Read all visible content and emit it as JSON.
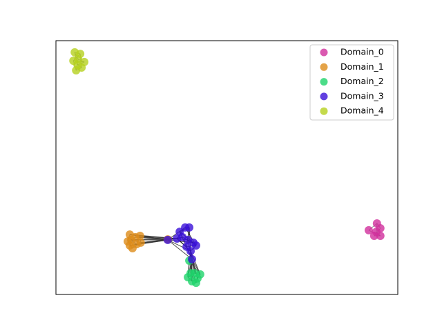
{
  "chart_data": {
    "type": "scatter",
    "xlim": [
      0,
      1
    ],
    "ylim": [
      0,
      1
    ],
    "legend": "upper right",
    "series": [
      {
        "name": "Domain_0",
        "color": "#d12f9c",
        "x": [
          0.915,
          0.939,
          0.949,
          0.931,
          0.949,
          0.937
        ],
        "values": [
          0.253,
          0.28,
          0.261,
          0.231,
          0.231,
          0.247
        ]
      },
      {
        "name": "Domain_1",
        "color": "#dd8c1a",
        "x": [
          0.216,
          0.22,
          0.216,
          0.232,
          0.246,
          0.248,
          0.224,
          0.21,
          0.236,
          0.327
        ],
        "values": [
          0.236,
          0.215,
          0.193,
          0.226,
          0.231,
          0.204,
          0.182,
          0.209,
          0.198,
          0.217
        ]
      },
      {
        "name": "Domain_2",
        "color": "#1ed36a",
        "x": [
          0.386,
          0.398,
          0.414,
          0.422,
          0.406,
          0.394,
          0.41,
          0.39
        ],
        "values": [
          0.068,
          0.052,
          0.063,
          0.079,
          0.084,
          0.084,
          0.046,
          0.133
        ]
      },
      {
        "name": "Domain_3",
        "color": "#3a10d8",
        "x": [
          0.378,
          0.39,
          0.362,
          0.37,
          0.354,
          0.386,
          0.402,
          0.41,
          0.382,
          0.398,
          0.327,
          0.394
        ],
        "values": [
          0.264,
          0.264,
          0.247,
          0.226,
          0.22,
          0.215,
          0.204,
          0.193,
          0.188,
          0.139,
          0.215,
          0.171
        ]
      },
      {
        "name": "Domain_4",
        "color": "#b5d11e",
        "x": [
          0.055,
          0.071,
          0.051,
          0.083,
          0.063,
          0.075,
          0.059,
          0.065
        ],
        "values": [
          0.954,
          0.948,
          0.921,
          0.916,
          0.905,
          0.894,
          0.883,
          0.927
        ]
      }
    ]
  }
}
